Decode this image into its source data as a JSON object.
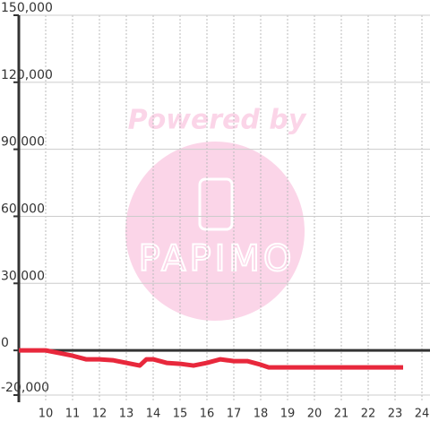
{
  "chart_data": {
    "type": "line",
    "x": [
      9,
      10,
      10.5,
      11,
      11.5,
      12,
      12.5,
      13,
      13.5,
      13.75,
      14,
      14.5,
      15,
      15.5,
      16,
      16.5,
      17,
      17.5,
      18,
      18.3,
      19,
      20,
      21,
      22,
      23,
      23.3
    ],
    "series": [
      {
        "color": "#e8283c",
        "values": [
          0,
          0,
          -1200,
          -2400,
          -4000,
          -4000,
          -4400,
          -5600,
          -6800,
          -4000,
          -4000,
          -5600,
          -6000,
          -6800,
          -5600,
          -4000,
          -4800,
          -4800,
          -6400,
          -7600,
          -7600,
          -7600,
          -7600,
          -7600,
          -7600,
          -7600
        ]
      }
    ],
    "xlim": [
      9,
      24.3
    ],
    "xticks": [
      10,
      11,
      12,
      13,
      14,
      15,
      16,
      17,
      18,
      19,
      20,
      21,
      22,
      23,
      24
    ],
    "ylim": [
      -20000,
      150000
    ],
    "yticks": [
      {
        "value": -20000,
        "label": "-20,000"
      },
      0,
      {
        "value": 30000,
        "label": "30,000"
      },
      {
        "value": 60000,
        "label": "60,000"
      },
      {
        "value": 90000,
        "label": "90,000"
      },
      {
        "value": 120000,
        "label": "120,000"
      },
      {
        "value": 150000,
        "label": "150,000"
      }
    ],
    "grid": true,
    "watermark": {
      "top": "Powered by",
      "logo": "PAPIMO"
    }
  }
}
